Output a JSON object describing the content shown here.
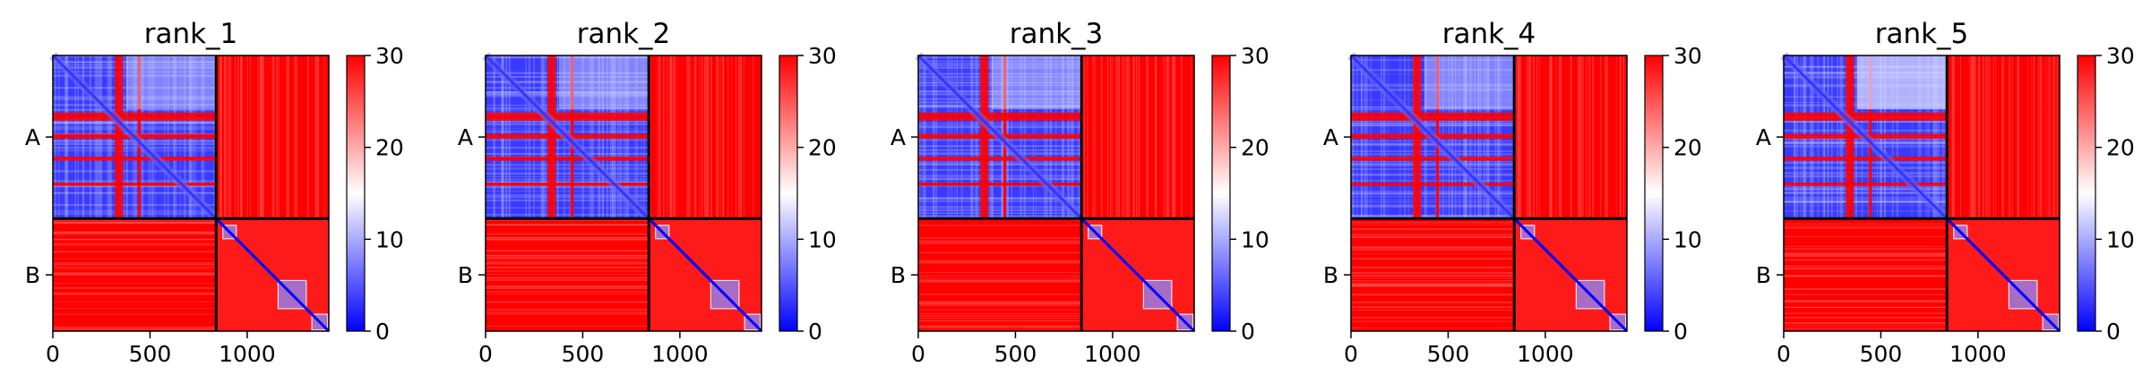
{
  "chart_data": [
    {
      "type": "heatmap",
      "title": "rank_1",
      "x_ticks": [
        0,
        500,
        1000
      ],
      "y_labels": [
        "A",
        "B"
      ],
      "chain_boundary": 840,
      "length": 1420,
      "colorbar": {
        "min": 0,
        "max": 30,
        "ticks": [
          0,
          10,
          20,
          30
        ],
        "colors": [
          "#0000ff",
          "#ffffff",
          "#ff0000"
        ]
      },
      "xlim": [
        0,
        1420
      ],
      "grid": false
    },
    {
      "type": "heatmap",
      "title": "rank_2",
      "x_ticks": [
        0,
        500,
        1000
      ],
      "y_labels": [
        "A",
        "B"
      ],
      "chain_boundary": 840,
      "length": 1420,
      "colorbar": {
        "min": 0,
        "max": 30,
        "ticks": [
          0,
          10,
          20,
          30
        ],
        "colors": [
          "#0000ff",
          "#ffffff",
          "#ff0000"
        ]
      },
      "xlim": [
        0,
        1420
      ],
      "grid": false
    },
    {
      "type": "heatmap",
      "title": "rank_3",
      "x_ticks": [
        0,
        500,
        1000
      ],
      "y_labels": [
        "A",
        "B"
      ],
      "chain_boundary": 840,
      "length": 1420,
      "colorbar": {
        "min": 0,
        "max": 30,
        "ticks": [
          0,
          10,
          20,
          30
        ],
        "colors": [
          "#0000ff",
          "#ffffff",
          "#ff0000"
        ]
      },
      "xlim": [
        0,
        1420
      ],
      "grid": false
    },
    {
      "type": "heatmap",
      "title": "rank_4",
      "x_ticks": [
        0,
        500,
        1000
      ],
      "y_labels": [
        "A",
        "B"
      ],
      "chain_boundary": 840,
      "length": 1420,
      "colorbar": {
        "min": 0,
        "max": 30,
        "ticks": [
          0,
          10,
          20,
          30
        ],
        "colors": [
          "#0000ff",
          "#ffffff",
          "#ff0000"
        ]
      },
      "xlim": [
        0,
        1420
      ],
      "grid": false
    },
    {
      "type": "heatmap",
      "title": "rank_5",
      "x_ticks": [
        0,
        500,
        1000
      ],
      "y_labels": [
        "A",
        "B"
      ],
      "chain_boundary": 840,
      "length": 1420,
      "colorbar": {
        "min": 0,
        "max": 30,
        "ticks": [
          0,
          10,
          20,
          30
        ],
        "colors": [
          "#0000ff",
          "#ffffff",
          "#ff0000"
        ]
      },
      "xlim": [
        0,
        1420
      ],
      "grid": false
    }
  ]
}
